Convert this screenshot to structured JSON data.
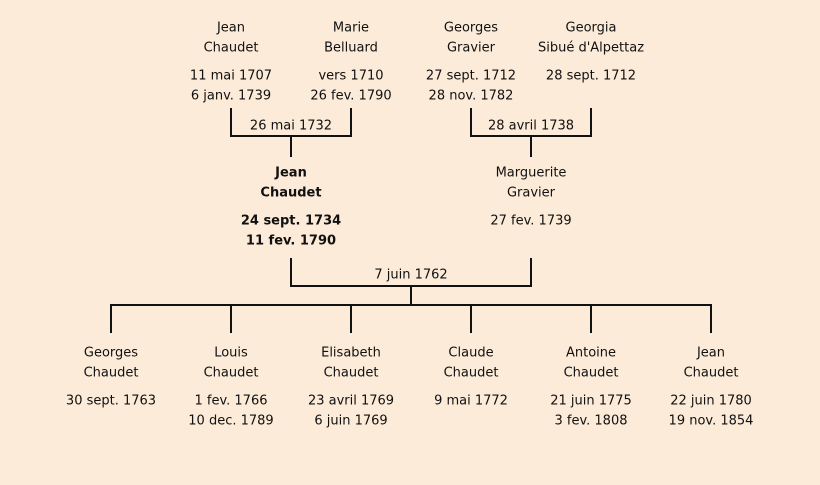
{
  "grandparents": [
    {
      "first": "Jean",
      "last": "Chaudet",
      "dates": [
        "11 mai 1707",
        "6 janv. 1739"
      ]
    },
    {
      "first": "Marie",
      "last": "Belluard",
      "dates": [
        "vers 1710",
        "26 fev. 1790"
      ]
    },
    {
      "first": "Georges",
      "last": "Gravier",
      "dates": [
        "27 sept. 1712",
        "28 nov. 1782"
      ]
    },
    {
      "first": "Georgia",
      "last": "Sibué d'Alpettaz",
      "dates": [
        "28 sept. 1712"
      ]
    }
  ],
  "grandparent_marriages": [
    "26 mai 1732",
    "28 avril 1738"
  ],
  "parents": [
    {
      "first": "Jean",
      "last": "Chaudet",
      "dates": [
        "24 sept. 1734",
        "11 fev. 1790"
      ]
    },
    {
      "first": "Marguerite",
      "last": "Gravier",
      "dates": [
        "27 fev. 1739"
      ]
    }
  ],
  "parent_marriage": "7 juin 1762",
  "children": [
    {
      "first": "Georges",
      "last": "Chaudet",
      "dates": [
        "30 sept. 1763"
      ]
    },
    {
      "first": "Louis",
      "last": "Chaudet",
      "dates": [
        "1 fev. 1766",
        "10 dec. 1789"
      ]
    },
    {
      "first": "Elisabeth",
      "last": "Chaudet",
      "dates": [
        "23 avril 1769",
        "6 juin 1769"
      ]
    },
    {
      "first": "Claude",
      "last": "Chaudet",
      "dates": [
        "9 mai 1772"
      ]
    },
    {
      "first": "Antoine",
      "last": "Chaudet",
      "dates": [
        "21 juin 1775",
        "3 fev. 1808"
      ]
    },
    {
      "first": "Jean",
      "last": "Chaudet",
      "dates": [
        "22 juin 1780",
        "19 nov. 1854"
      ]
    }
  ]
}
